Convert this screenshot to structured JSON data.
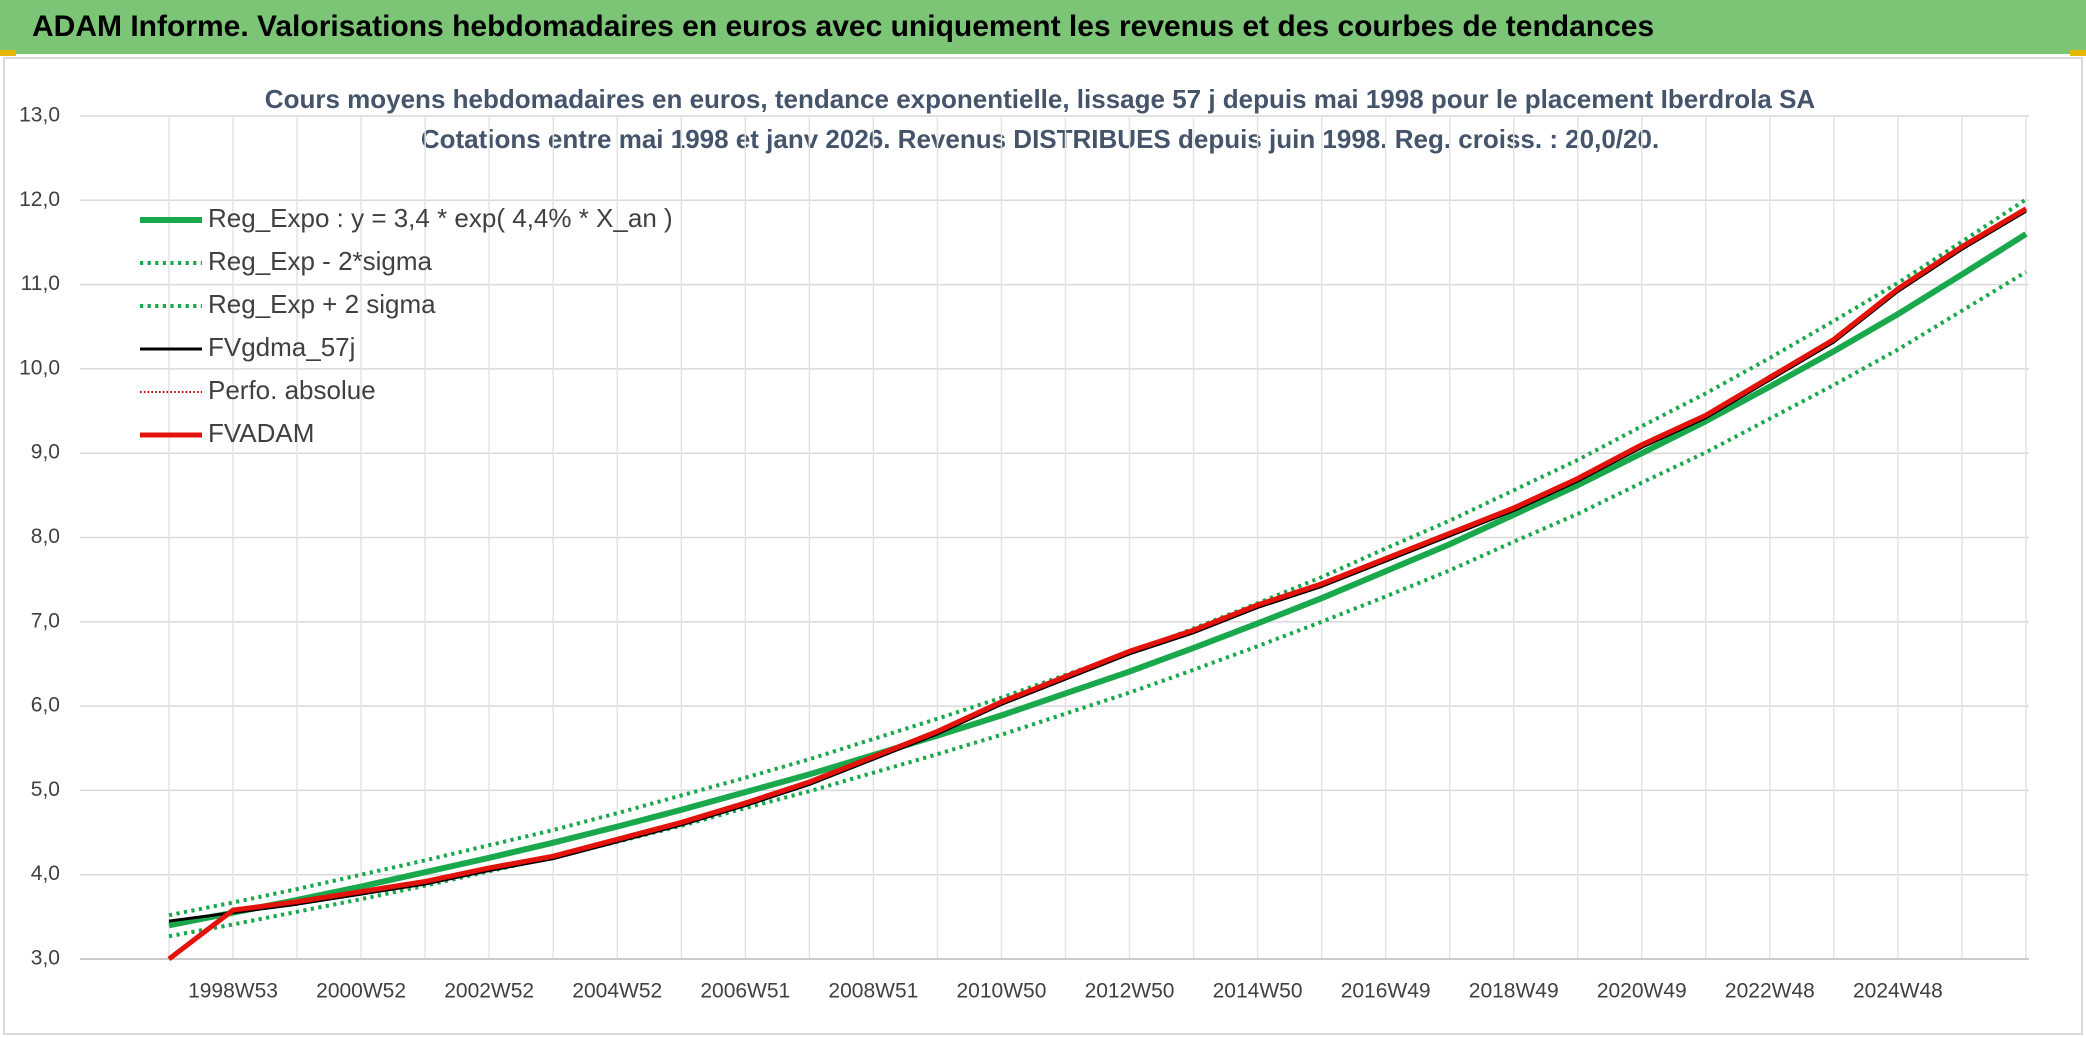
{
  "header": {
    "title": "ADAM Informe. Valorisations hebdomadaires en euros avec uniquement les revenus et des courbes de tendances"
  },
  "chart_data": {
    "type": "line",
    "title": "Cours moyens hebdomadaires en euros, tendance exponentielle, lissage 57 j depuis mai 1998 pour le placement Iberdrola SA",
    "subtitle": "Cotations entre mai 1998 et janv 2026. Revenus DISTRIBUES depuis juin 1998. Reg. croiss. : 20,0/20.",
    "categories": [
      null,
      "1998W53",
      null,
      "2000W52",
      null,
      "2002W52",
      null,
      "2004W52",
      null,
      "2006W51",
      null,
      "2008W51",
      null,
      "2010W50",
      null,
      "2012W50",
      null,
      "2014W50",
      null,
      "2016W49",
      null,
      "2018W49",
      null,
      "2020W49",
      null,
      "2022W48",
      null,
      "2024W48",
      null,
      null
    ],
    "ylim": [
      3,
      13
    ],
    "yticks": [
      {
        "value": 3,
        "label": "3,0"
      },
      {
        "value": 4,
        "label": "4,0"
      },
      {
        "value": 5,
        "label": "5,0"
      },
      {
        "value": 6,
        "label": "6,0"
      },
      {
        "value": 7,
        "label": "7,0"
      },
      {
        "value": 8,
        "label": "8,0"
      },
      {
        "value": 9,
        "label": "9,0"
      },
      {
        "value": 10,
        "label": "10,0"
      },
      {
        "value": 11,
        "label": "11,0"
      },
      {
        "value": 12,
        "label": "12,0"
      },
      {
        "value": 13,
        "label": "13,0"
      }
    ],
    "grid": true,
    "legend": "top-left",
    "series": [
      {
        "name": "Reg_Expo : y = 3,4 * exp( 4,4% *  X_an )",
        "color": "#1aa84c",
        "style": "solid",
        "width": 6,
        "values": [
          3.4,
          3.55,
          3.7,
          3.86,
          4.03,
          4.2,
          4.38,
          4.57,
          4.77,
          4.98,
          5.19,
          5.42,
          5.65,
          5.89,
          6.15,
          6.41,
          6.69,
          6.98,
          7.28,
          7.6,
          7.92,
          8.27,
          8.62,
          9.0,
          9.38,
          9.79,
          10.21,
          10.65,
          11.12,
          11.6
        ]
      },
      {
        "name": "Reg_Exp - 2*sigma",
        "color": "#1aa84c",
        "style": "dotted",
        "width": 4,
        "values": [
          3.27,
          3.41,
          3.56,
          3.71,
          3.87,
          4.04,
          4.21,
          4.39,
          4.58,
          4.79,
          4.99,
          5.21,
          5.43,
          5.66,
          5.91,
          6.16,
          6.43,
          6.71,
          7.0,
          7.3,
          7.61,
          7.95,
          8.28,
          8.65,
          9.01,
          9.41,
          9.81,
          10.23,
          10.69,
          11.15
        ]
      },
      {
        "name": "Reg_Exp + 2 sigma",
        "color": "#1aa84c",
        "style": "dotted",
        "width": 4,
        "values": [
          3.52,
          3.67,
          3.83,
          4.0,
          4.17,
          4.35,
          4.53,
          4.73,
          4.94,
          5.15,
          5.37,
          5.61,
          5.85,
          6.1,
          6.37,
          6.63,
          6.92,
          7.22,
          7.53,
          7.87,
          8.2,
          8.56,
          8.92,
          9.32,
          9.71,
          10.13,
          10.57,
          11.02,
          11.51,
          12.01
        ]
      },
      {
        "name": "FVgdma_57j",
        "color": "#000000",
        "style": "solid",
        "width": 3,
        "values": [
          3.45,
          3.55,
          3.65,
          3.77,
          3.89,
          4.05,
          4.19,
          4.39,
          4.59,
          4.82,
          5.07,
          5.37,
          5.67,
          6.02,
          6.32,
          6.62,
          6.87,
          7.17,
          7.42,
          7.72,
          8.02,
          8.32,
          8.67,
          9.07,
          9.42,
          9.87,
          10.32,
          10.92,
          11.42,
          11.87
        ]
      },
      {
        "name": "Perfo. absolue",
        "color": "#c00000",
        "style": "dotted",
        "width": 2,
        "values": [
          3.0,
          3.58,
          3.68,
          3.8,
          3.92,
          4.08,
          4.22,
          4.42,
          4.62,
          4.85,
          5.1,
          5.4,
          5.7,
          6.05,
          6.35,
          6.65,
          6.9,
          7.2,
          7.45,
          7.75,
          8.05,
          8.35,
          8.7,
          9.1,
          9.45,
          9.9,
          10.35,
          10.95,
          11.45,
          11.9
        ]
      },
      {
        "name": "FVADAM",
        "color": "#e3120b",
        "style": "solid",
        "width": 5,
        "values": [
          3.0,
          3.58,
          3.68,
          3.8,
          3.92,
          4.08,
          4.22,
          4.42,
          4.62,
          4.85,
          5.1,
          5.4,
          5.7,
          6.05,
          6.35,
          6.65,
          6.9,
          7.2,
          7.45,
          7.75,
          8.05,
          8.35,
          8.7,
          9.1,
          9.45,
          9.9,
          10.35,
          10.95,
          11.45,
          11.9
        ]
      }
    ]
  }
}
